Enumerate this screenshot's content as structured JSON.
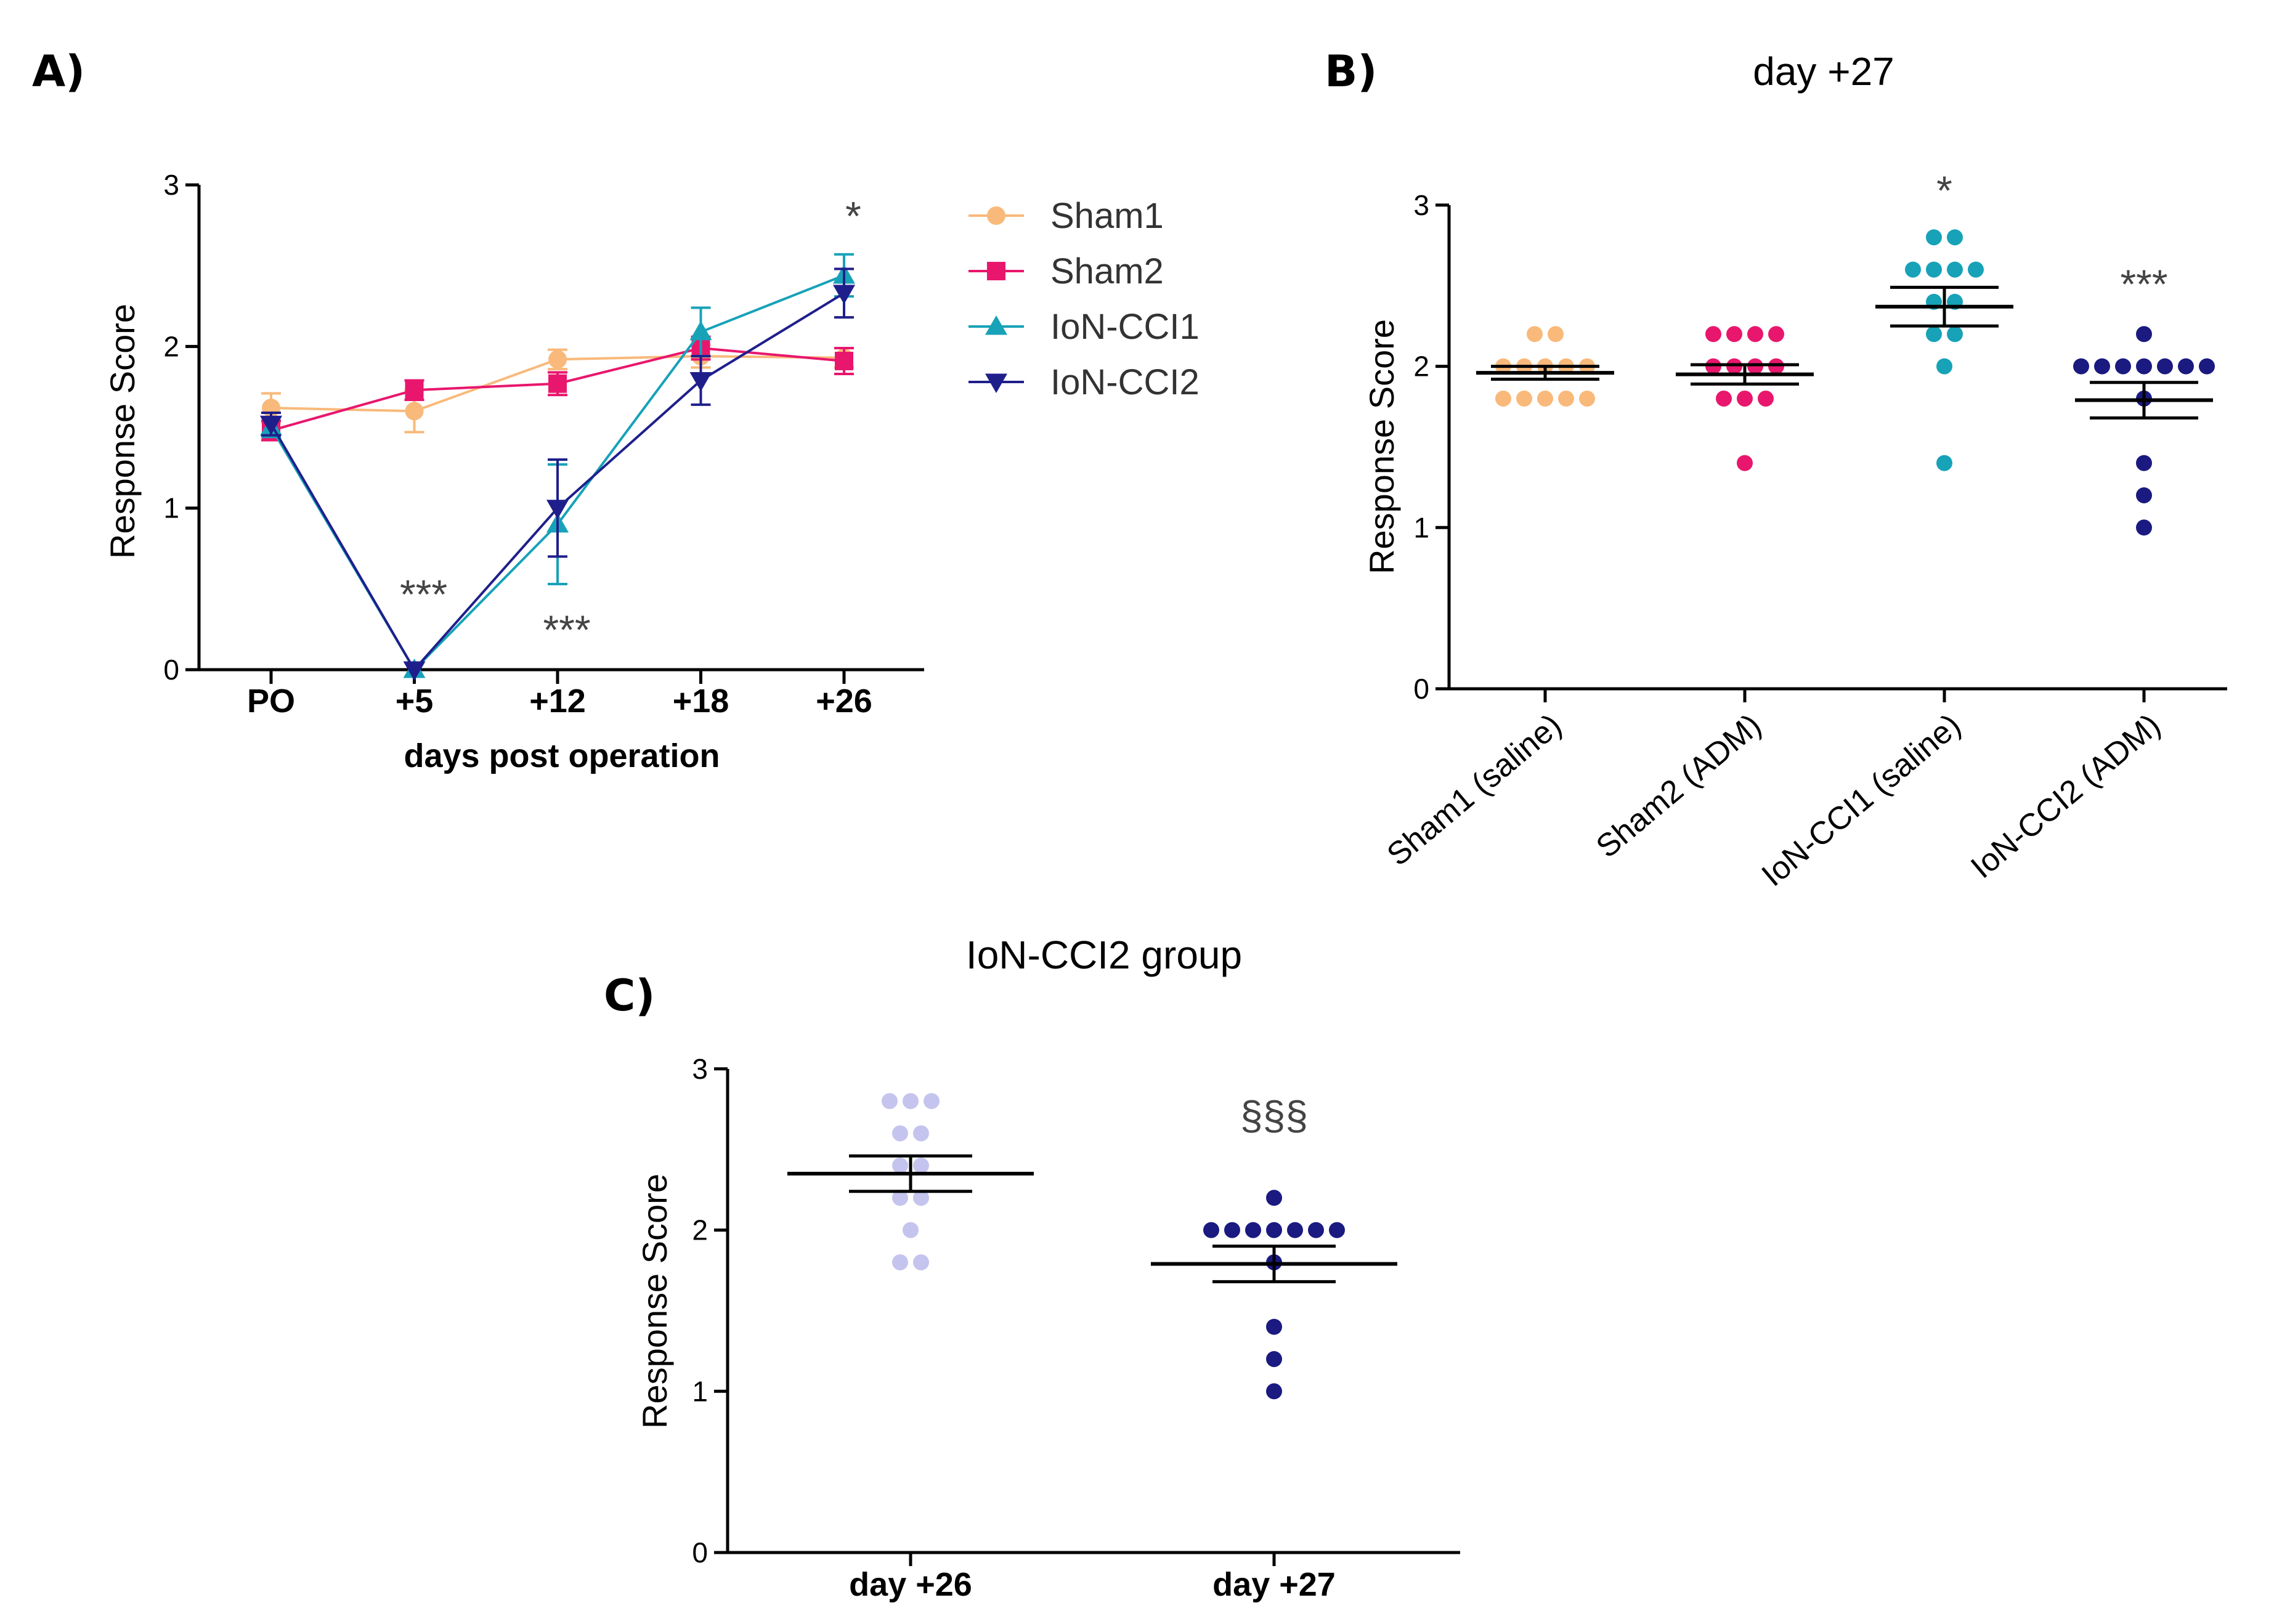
{
  "panels": {
    "a": "A)",
    "b": "B)",
    "c": "C)"
  },
  "chart_data": [
    {
      "id": "A",
      "type": "line",
      "title": "",
      "xlabel": "days post operation",
      "ylabel": "Response Score",
      "ylim": [
        0,
        3
      ],
      "yticks": [
        "0",
        "1",
        "2",
        "3"
      ],
      "categories": [
        "PO",
        "+5",
        "+12",
        "+18",
        "+26"
      ],
      "legend_position": "right",
      "series": [
        {
          "name": "Sham1",
          "marker": "circle",
          "color": "#f9b97a",
          "values": [
            1.62,
            1.6,
            1.92,
            1.94,
            1.93
          ],
          "errors": [
            0.09,
            0.13,
            0.06,
            0.07,
            0.06
          ]
        },
        {
          "name": "Sham2",
          "marker": "square",
          "color": "#e8176d",
          "values": [
            1.48,
            1.73,
            1.77,
            1.99,
            1.91
          ],
          "errors": [
            0.06,
            0.06,
            0.07,
            0.07,
            0.08
          ]
        },
        {
          "name": "IoN-CCI1",
          "marker": "triangle-up",
          "color": "#17a2b8",
          "values": [
            1.5,
            0.0,
            0.9,
            2.09,
            2.44
          ],
          "errors": [
            0.06,
            0.0,
            0.37,
            0.15,
            0.13
          ]
        },
        {
          "name": "IoN-CCI2",
          "marker": "triangle-down",
          "color": "#1f1f8c",
          "values": [
            1.52,
            0.0,
            1.0,
            1.79,
            2.33
          ],
          "errors": [
            0.07,
            0.0,
            0.3,
            0.15,
            0.15
          ]
        }
      ],
      "annotations": [
        {
          "text": "***",
          "category": "+5",
          "y": 0.38
        },
        {
          "text": "***",
          "category": "+12",
          "y": 0.16
        },
        {
          "text": "*",
          "category": "+26",
          "y": 2.72
        }
      ]
    },
    {
      "id": "B",
      "type": "scatter",
      "title": "day +27",
      "xlabel": "",
      "ylabel": "Response Score",
      "ylim": [
        0,
        3
      ],
      "yticks": [
        "0",
        "1",
        "2",
        "3"
      ],
      "categories": [
        "Sham1 (saline)",
        "Sham2 (ADM)",
        "IoN-CCI1 (saline)",
        "IoN-CCI2 (ADM)"
      ],
      "groups": [
        {
          "name": "Sham1 (saline)",
          "color": "#f9b97a",
          "points": [
            2.2,
            2.2,
            2.0,
            2.0,
            2.0,
            2.0,
            2.0,
            1.8,
            1.8,
            1.8,
            1.8,
            1.8
          ],
          "mean": 1.96,
          "sem": 0.04
        },
        {
          "name": "Sham2 (ADM)",
          "color": "#e8176d",
          "points": [
            2.2,
            2.2,
            2.2,
            2.2,
            2.0,
            2.0,
            2.0,
            2.0,
            1.8,
            1.8,
            1.8,
            1.4
          ],
          "mean": 1.95,
          "sem": 0.06
        },
        {
          "name": "IoN-CCI1 (saline)",
          "color": "#17a2b8",
          "points": [
            2.8,
            2.8,
            2.6,
            2.6,
            2.6,
            2.6,
            2.4,
            2.4,
            2.2,
            2.2,
            2.0,
            1.4
          ],
          "mean": 2.37,
          "sem": 0.12
        },
        {
          "name": "IoN-CCI2 (ADM)",
          "color": "#1a1a80",
          "points": [
            2.2,
            2.0,
            2.0,
            2.0,
            2.0,
            2.0,
            2.0,
            2.0,
            1.8,
            1.4,
            1.2,
            1.0
          ],
          "mean": 1.79,
          "sem": 0.11
        }
      ],
      "annotations": [
        {
          "text": "*",
          "group": "IoN-CCI1 (saline)",
          "y": 3.08
        },
        {
          "text": "***",
          "group": "IoN-CCI2 (ADM)",
          "y": 2.5
        }
      ]
    },
    {
      "id": "C",
      "type": "scatter",
      "title": "IoN-CCI2 group",
      "xlabel": "",
      "ylabel": "Response Score",
      "ylim": [
        0,
        3
      ],
      "yticks": [
        "0",
        "1",
        "2",
        "3"
      ],
      "categories": [
        "day +26",
        "day +27"
      ],
      "groups": [
        {
          "name": "day +26",
          "color": "#c4c4ee",
          "points": [
            2.8,
            2.8,
            2.8,
            2.6,
            2.6,
            2.4,
            2.4,
            2.2,
            2.2,
            2.0,
            1.8,
            1.8
          ],
          "mean": 2.35,
          "sem": 0.11
        },
        {
          "name": "day +27",
          "color": "#1a1a80",
          "points": [
            2.2,
            2.0,
            2.0,
            2.0,
            2.0,
            2.0,
            2.0,
            2.0,
            1.8,
            1.4,
            1.2,
            1.0
          ],
          "mean": 1.79,
          "sem": 0.11
        }
      ],
      "annotations": [
        {
          "text": "§§§",
          "group": "day +27",
          "y": 2.7
        }
      ]
    }
  ]
}
